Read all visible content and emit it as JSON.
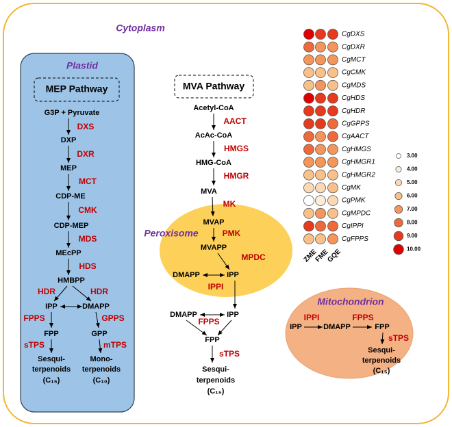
{
  "labels": {
    "cytoplasm": "Cytoplasm",
    "plastid": "Plastid",
    "peroxisome": "Peroxisome",
    "mitochondrion": "Mitochondrion"
  },
  "mep": {
    "title": "MEP Pathway",
    "nodes": [
      "G3P + Pyruvate",
      "DXP",
      "MEP",
      "CDP-ME",
      "CDP-MEP",
      "MEcPP",
      "HMBPP",
      "IPP",
      "DMAPP",
      "FPP",
      "GPP"
    ],
    "enzymes": [
      "DXS",
      "DXR",
      "MCT",
      "CMK",
      "MDS",
      "HDS",
      "HDR",
      "HDR",
      "FPPS",
      "GPPS",
      "sTPS",
      "mTPS"
    ],
    "products": [
      [
        "Sesqui-",
        "terpenoids",
        "(C₁₅)"
      ],
      [
        "Mono-",
        "terpenoids",
        "(C₁₀)"
      ]
    ]
  },
  "mva": {
    "title": "MVA Pathway",
    "nodes": [
      "Acetyl-CoA",
      "AcAc-CoA",
      "HMG-CoA",
      "MVA",
      "MVAP",
      "MVAPP",
      "DMAPP",
      "IPP",
      "DMAPP",
      "IPP",
      "FPP"
    ],
    "enzymes": [
      "AACT",
      "HMGS",
      "HMGR",
      "MK",
      "PMK",
      "MPDC",
      "IPPI",
      "FPPS",
      "sTPS"
    ],
    "product": [
      "Sesqui-",
      "terpenoids",
      "(C₁₅)"
    ]
  },
  "mito": {
    "nodes": [
      "IPP",
      "DMAPP",
      "FPP"
    ],
    "enzymes": [
      "IPPI",
      "FPPS",
      "sTPS"
    ],
    "product": [
      "Sesqui-",
      "terpenoids",
      "(C₁₅)"
    ]
  },
  "heatmap": {
    "samples": [
      "ZME",
      "FME",
      "GQE"
    ],
    "genes": [
      "CgDXS",
      "CgDXR",
      "CgMCT",
      "CgCMK",
      "CgMDS",
      "CgHDS",
      "CgHDR",
      "CgGPPS",
      "CgAACT",
      "CgHMGS",
      "CgHMGR1",
      "CgHMGR2",
      "CgMK",
      "CgPMK",
      "CgMPDC",
      "CgIPPI",
      "CgFPPS"
    ],
    "values": [
      [
        10,
        9,
        9
      ],
      [
        8,
        7,
        7
      ],
      [
        7,
        7,
        7
      ],
      [
        6,
        6,
        6
      ],
      [
        6,
        7,
        6
      ],
      [
        10,
        9,
        9
      ],
      [
        9,
        9,
        9
      ],
      [
        9,
        9,
        8
      ],
      [
        8,
        7,
        8
      ],
      [
        8,
        7,
        7
      ],
      [
        7,
        7,
        7
      ],
      [
        6,
        6,
        6
      ],
      [
        5,
        5,
        6
      ],
      [
        3,
        4,
        5
      ],
      [
        6,
        7,
        6
      ],
      [
        9,
        8,
        8
      ],
      [
        6,
        6,
        7
      ]
    ],
    "legend": [
      {
        "value": 3,
        "label": "3.00"
      },
      {
        "value": 4,
        "label": "4.00"
      },
      {
        "value": 5,
        "label": "5.00"
      },
      {
        "value": 6,
        "label": "6.00"
      },
      {
        "value": 7,
        "label": "7.00"
      },
      {
        "value": 8,
        "label": "8.00"
      },
      {
        "value": 9,
        "label": "9.00"
      },
      {
        "value": 10,
        "label": "10.00"
      }
    ]
  }
}
